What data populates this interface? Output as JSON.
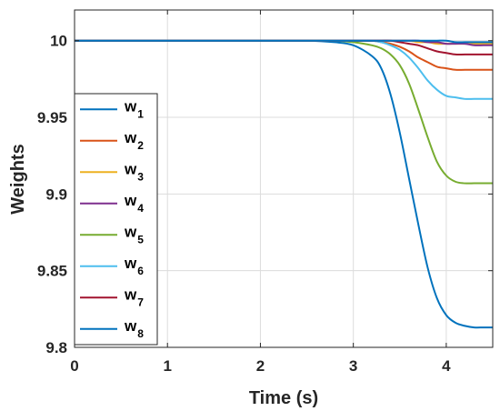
{
  "chart_data": {
    "type": "line",
    "title": "",
    "xlabel": "Time (s)",
    "ylabel": "Weights",
    "xlim": [
      0,
      4.5
    ],
    "ylim": [
      9.8,
      10.02
    ],
    "xticks": [
      0,
      1,
      2,
      3,
      4
    ],
    "xtick_labels": [
      "0",
      "1",
      "2",
      "3",
      "4"
    ],
    "yticks": [
      9.8,
      9.85,
      9.9,
      9.95,
      10
    ],
    "ytick_labels": [
      "9.8",
      "9.85",
      "9.9",
      "9.95",
      "10"
    ],
    "grid": true,
    "legend_position": "left",
    "x": [
      0,
      0.5,
      1,
      1.5,
      2,
      2.5,
      2.8,
      3,
      3.2,
      3.3,
      3.4,
      3.5,
      3.6,
      3.7,
      3.8,
      3.9,
      4.0,
      4.1,
      4.2,
      4.3,
      4.4,
      4.5
    ],
    "series": [
      {
        "name": "w",
        "sub": "1",
        "color": "#0072BD",
        "values": [
          10,
          10,
          10,
          10,
          10,
          10,
          9.999,
          9.997,
          9.99,
          9.982,
          9.965,
          9.94,
          9.91,
          9.88,
          9.852,
          9.832,
          9.821,
          9.816,
          9.814,
          9.813,
          9.813,
          9.813
        ]
      },
      {
        "name": "w",
        "sub": "2",
        "color": "#D95319",
        "values": [
          10,
          10,
          10,
          10,
          10,
          10,
          10,
          10,
          10,
          9.999,
          9.998,
          9.996,
          9.993,
          9.989,
          9.986,
          9.983,
          9.982,
          9.981,
          9.981,
          9.981,
          9.981,
          9.981
        ]
      },
      {
        "name": "w",
        "sub": "3",
        "color": "#EDB120",
        "values": [
          10,
          10,
          10,
          10,
          10,
          10,
          10,
          10,
          10,
          10,
          10,
          10,
          10,
          9.999,
          9.999,
          9.998,
          9.998,
          9.998,
          9.998,
          9.998,
          9.998,
          9.998
        ]
      },
      {
        "name": "w",
        "sub": "4",
        "color": "#7E2F8E",
        "values": [
          10,
          10,
          10,
          10,
          10,
          10,
          10,
          10,
          10,
          10,
          10,
          10,
          10,
          10,
          9.999,
          9.999,
          9.998,
          9.998,
          9.998,
          9.997,
          9.997,
          9.997
        ]
      },
      {
        "name": "w",
        "sub": "5",
        "color": "#77AC30",
        "values": [
          10,
          10,
          10,
          10,
          10,
          10,
          10,
          9.999,
          9.997,
          9.995,
          9.991,
          9.984,
          9.972,
          9.955,
          9.937,
          9.921,
          9.912,
          9.908,
          9.907,
          9.907,
          9.907,
          9.907
        ]
      },
      {
        "name": "w",
        "sub": "6",
        "color": "#4DBEEE",
        "values": [
          10,
          10,
          10,
          10,
          10,
          10,
          10,
          10,
          10,
          9.999,
          9.997,
          9.994,
          9.989,
          9.982,
          9.974,
          9.968,
          9.964,
          9.963,
          9.962,
          9.962,
          9.962,
          9.962
        ]
      },
      {
        "name": "w",
        "sub": "7",
        "color": "#A2142F",
        "values": [
          10,
          10,
          10,
          10,
          10,
          10,
          10,
          10,
          10,
          10,
          10,
          9.999,
          9.998,
          9.997,
          9.995,
          9.993,
          9.992,
          9.991,
          9.991,
          9.991,
          9.991,
          9.991
        ]
      },
      {
        "name": "w",
        "sub": "8",
        "color": "#0072BD",
        "values": [
          10,
          10,
          10,
          10,
          10,
          10,
          10,
          10,
          10,
          10,
          10,
          10,
          10,
          10,
          10,
          10,
          10,
          9.999,
          9.999,
          9.999,
          9.999,
          9.999
        ]
      }
    ]
  }
}
